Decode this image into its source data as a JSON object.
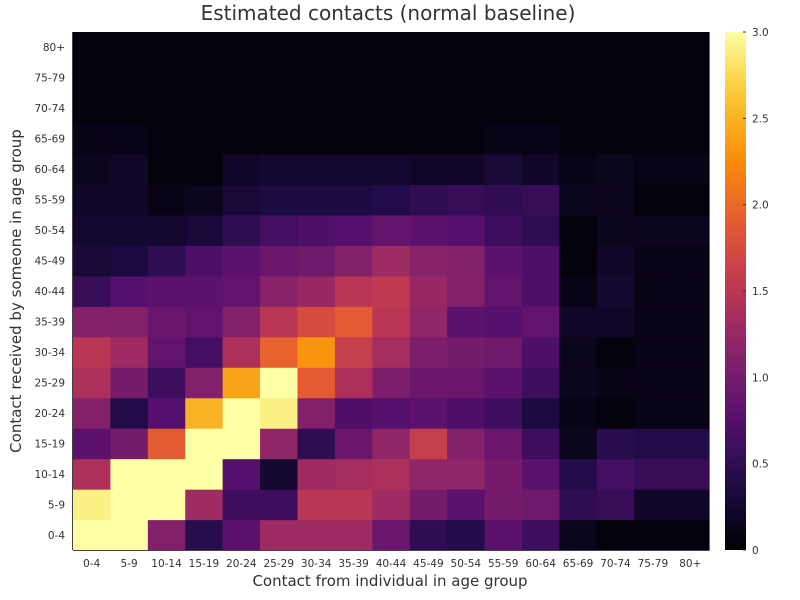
{
  "chart_data": {
    "type": "heatmap",
    "title": "Estimated contacts (normal baseline)",
    "xlabel": "Contact from individual in age group",
    "ylabel": "Contact received by someone in age group",
    "x_categories": [
      "0-4",
      "5-9",
      "10-14",
      "15-19",
      "20-24",
      "25-29",
      "30-34",
      "35-39",
      "40-44",
      "45-49",
      "50-54",
      "55-59",
      "60-64",
      "65-69",
      "70-74",
      "75-79",
      "80+"
    ],
    "y_categories": [
      "0-4",
      "5-9",
      "10-14",
      "15-19",
      "20-24",
      "25-29",
      "30-34",
      "35-39",
      "40-44",
      "45-49",
      "50-54",
      "55-59",
      "60-64",
      "65-69",
      "70-74",
      "75-79",
      "80+"
    ],
    "color_range": [
      0,
      3
    ],
    "colormap": "inferno",
    "colorbar_ticks": [
      "0",
      "0.5",
      "1.0",
      "1.5",
      "2.0",
      "2.5",
      "3.0"
    ],
    "grid": false,
    "values": [
      [
        3.0,
        3.0,
        1.1,
        0.45,
        0.8,
        1.3,
        1.3,
        1.3,
        0.9,
        0.5,
        0.4,
        0.8,
        0.6,
        0.15,
        0.05,
        0.05,
        0.05
      ],
      [
        2.9,
        3.0,
        3.0,
        1.3,
        0.6,
        0.6,
        1.5,
        1.5,
        1.3,
        1.0,
        0.8,
        1.0,
        0.95,
        0.5,
        0.55,
        0.2,
        0.2
      ],
      [
        1.4,
        3.0,
        3.0,
        3.0,
        0.75,
        0.25,
        1.3,
        1.35,
        1.4,
        1.2,
        1.2,
        1.0,
        0.8,
        0.4,
        0.65,
        0.55,
        0.55
      ],
      [
        0.8,
        1.0,
        1.9,
        3.0,
        3.0,
        1.2,
        0.5,
        0.9,
        1.2,
        1.6,
        1.1,
        0.9,
        0.6,
        0.15,
        0.45,
        0.4,
        0.4
      ],
      [
        1.1,
        0.4,
        0.75,
        2.5,
        3.0,
        2.9,
        1.1,
        0.7,
        0.75,
        0.8,
        0.7,
        0.6,
        0.35,
        0.1,
        0.05,
        0.1,
        0.1
      ],
      [
        1.4,
        1.0,
        0.6,
        1.1,
        2.4,
        3.0,
        1.9,
        1.4,
        1.05,
        0.9,
        0.9,
        0.8,
        0.6,
        0.15,
        0.1,
        0.1,
        0.1
      ],
      [
        1.5,
        1.3,
        0.85,
        0.65,
        1.4,
        1.95,
        2.3,
        1.6,
        1.35,
        1.05,
        1.0,
        0.95,
        0.7,
        0.15,
        0.05,
        0.1,
        0.1
      ],
      [
        1.1,
        1.1,
        0.9,
        0.85,
        1.1,
        1.5,
        1.75,
        1.9,
        1.5,
        1.2,
        0.8,
        0.75,
        0.85,
        0.2,
        0.2,
        0.1,
        0.1
      ],
      [
        0.55,
        0.75,
        0.8,
        0.8,
        0.85,
        1.15,
        1.25,
        1.5,
        1.55,
        1.25,
        1.1,
        0.85,
        0.7,
        0.1,
        0.25,
        0.1,
        0.1
      ],
      [
        0.3,
        0.35,
        0.5,
        0.7,
        0.8,
        0.9,
        0.95,
        1.1,
        1.3,
        1.15,
        1.1,
        0.8,
        0.7,
        0.05,
        0.2,
        0.1,
        0.1
      ],
      [
        0.25,
        0.25,
        0.25,
        0.3,
        0.5,
        0.65,
        0.7,
        0.75,
        0.85,
        0.8,
        0.75,
        0.6,
        0.5,
        0.05,
        0.15,
        0.15,
        0.15
      ],
      [
        0.2,
        0.2,
        0.1,
        0.15,
        0.3,
        0.35,
        0.35,
        0.35,
        0.4,
        0.5,
        0.55,
        0.5,
        0.55,
        0.15,
        0.15,
        0.05,
        0.05
      ],
      [
        0.15,
        0.2,
        0.05,
        0.05,
        0.2,
        0.25,
        0.25,
        0.25,
        0.25,
        0.2,
        0.2,
        0.3,
        0.2,
        0.1,
        0.15,
        0.1,
        0.1
      ],
      [
        0.1,
        0.1,
        0.05,
        0.05,
        0.05,
        0.05,
        0.05,
        0.05,
        0.05,
        0.05,
        0.05,
        0.1,
        0.1,
        0.05,
        0.05,
        0.05,
        0.05
      ],
      [
        0.05,
        0.05,
        0.05,
        0.05,
        0.05,
        0.05,
        0.05,
        0.05,
        0.05,
        0.05,
        0.05,
        0.05,
        0.05,
        0.05,
        0.05,
        0.05,
        0.05
      ],
      [
        0.05,
        0.05,
        0.05,
        0.05,
        0.05,
        0.05,
        0.05,
        0.05,
        0.05,
        0.05,
        0.05,
        0.05,
        0.05,
        0.05,
        0.05,
        0.05,
        0.05
      ],
      [
        0.05,
        0.05,
        0.05,
        0.05,
        0.05,
        0.05,
        0.05,
        0.05,
        0.05,
        0.05,
        0.05,
        0.05,
        0.05,
        0.05,
        0.05,
        0.05,
        0.05
      ]
    ]
  }
}
